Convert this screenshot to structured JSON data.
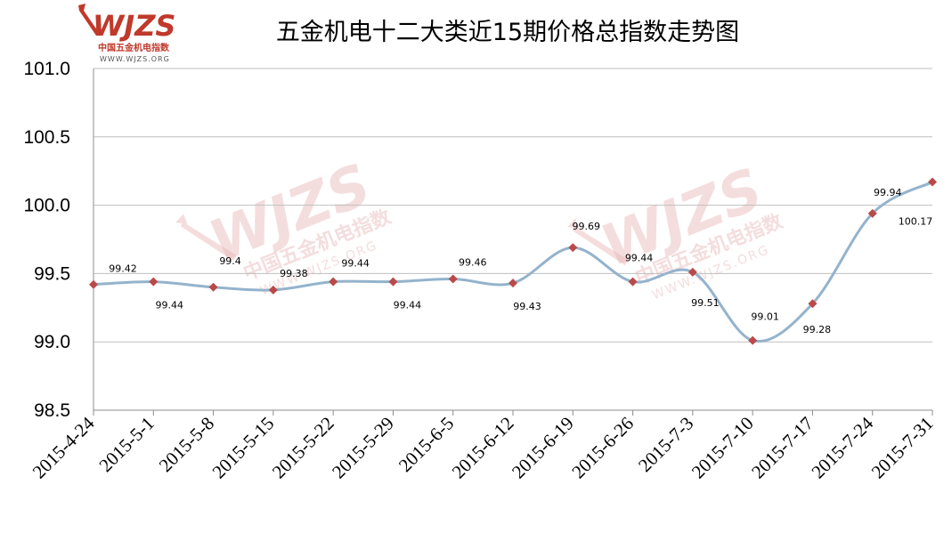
{
  "logo": {
    "mark": "WJZS",
    "subtitle": "中国五金机电指数",
    "url": "WWW.WJZS.ORG"
  },
  "chart_data": {
    "type": "line",
    "title": "五金机电十二大类近15期价格总指数走势图",
    "xlabel": "",
    "ylabel": "",
    "ylim": [
      98.5,
      101.0
    ],
    "yticks": [
      "98.5",
      "99.0",
      "99.5",
      "100.0",
      "100.5",
      "101.0"
    ],
    "grid": true,
    "legend": "none",
    "categories": [
      "2015-4-24",
      "2015-5-1",
      "2015-5-8",
      "2015-5-15",
      "2015-5-22",
      "2015-5-29",
      "2015-6-5",
      "2015-6-12",
      "2015-6-19",
      "2015-6-26",
      "2015-7-3",
      "2015-7-10",
      "2015-7-17",
      "2015-7-24",
      "2015-7-31"
    ],
    "series": [
      {
        "values": [
          99.42,
          99.44,
          99.4,
          99.38,
          99.44,
          99.44,
          99.46,
          99.43,
          99.69,
          99.44,
          99.51,
          99.01,
          99.28,
          99.94,
          100.17
        ],
        "labels": [
          "99.42",
          "99.44",
          "99.4",
          "99.38",
          "99.44",
          "99.44",
          "99.46",
          "99.43",
          "99.69",
          "99.44",
          "99.51",
          "99.01",
          "99.28",
          "99.94",
          "100.17"
        ],
        "line_color": "#94b3cc",
        "marker_color": "#b94a48"
      }
    ]
  }
}
